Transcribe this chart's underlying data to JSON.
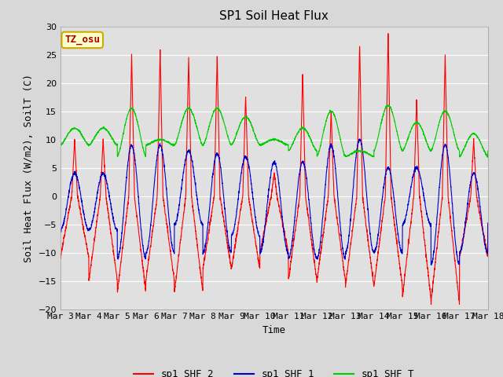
{
  "title": "SP1 Soil Heat Flux",
  "xlabel": "Time",
  "ylabel": "Soil Heat Flux (W/m2), SoilT (C)",
  "ylim": [
    -20,
    30
  ],
  "xtick_labels": [
    "Mar 3",
    "Mar 4",
    "Mar 5",
    "Mar 6",
    "Mar 7",
    "Mar 8",
    "Mar 9",
    "Mar 10",
    "Mar 11",
    "Mar 12",
    "Mar 13",
    "Mar 14",
    "Mar 15",
    "Mar 16",
    "Mar 17",
    "Mar 18"
  ],
  "annotation_text": "TZ_osu",
  "annotation_bg": "#ffffcc",
  "annotation_border": "#ccaa00",
  "line_colors": {
    "sp1_SHF_2": "#ff0000",
    "sp1_SHF_1": "#0000cc",
    "sp1_SHF_T": "#00cc00"
  },
  "bg_color": "#e8e8e8",
  "plot_bg_color": "#e0e0e0",
  "grid_color": "#ffffff",
  "title_fontsize": 11,
  "label_fontsize": 9,
  "tick_fontsize": 8,
  "legend_fontsize": 9,
  "fig_width": 6.4,
  "fig_height": 4.8,
  "dpi": 100
}
